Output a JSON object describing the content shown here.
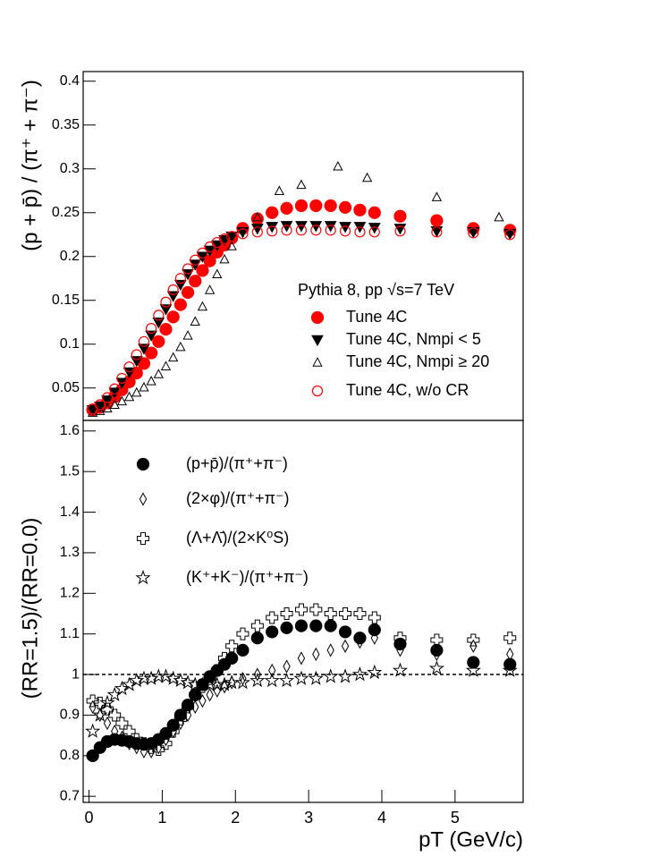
{
  "chart_data": [
    {
      "type": "scatter",
      "y_label": "(p + p̄) / (π⁺ + π⁻)",
      "legend_title": "Pythia 8, pp √s=7 TeV",
      "xlim": [
        -0.08,
        5.93
      ],
      "ylim": [
        0.013,
        0.411
      ],
      "yticks": [
        0.05,
        0.1,
        0.15,
        0.2,
        0.25,
        0.3,
        0.35,
        0.4
      ],
      "series": [
        {
          "name": "Tune 4C",
          "color": "#ff0000",
          "marker": "circle",
          "x": [
            0.05,
            0.15,
            0.25,
            0.35,
            0.45,
            0.55,
            0.65,
            0.75,
            0.85,
            0.95,
            1.05,
            1.15,
            1.25,
            1.35,
            1.45,
            1.55,
            1.65,
            1.75,
            1.85,
            1.95,
            2.1,
            2.3,
            2.5,
            2.7,
            2.9,
            3.1,
            3.3,
            3.5,
            3.7,
            3.9,
            4.25,
            4.75,
            5.25,
            5.75
          ],
          "values": [
            0.025,
            0.028,
            0.033,
            0.04,
            0.048,
            0.057,
            0.067,
            0.078,
            0.09,
            0.103,
            0.117,
            0.131,
            0.145,
            0.159,
            0.172,
            0.184,
            0.195,
            0.205,
            0.213,
            0.221,
            0.232,
            0.243,
            0.25,
            0.255,
            0.258,
            0.258,
            0.258,
            0.256,
            0.253,
            0.25,
            0.246,
            0.241,
            0.232,
            0.23
          ]
        },
        {
          "name": "Tune 4C, Nmpi < 5",
          "color": "#000000",
          "marker": "triangle-down",
          "x": [
            0.05,
            0.15,
            0.25,
            0.35,
            0.45,
            0.55,
            0.65,
            0.75,
            0.85,
            0.95,
            1.05,
            1.15,
            1.25,
            1.35,
            1.45,
            1.55,
            1.65,
            1.75,
            1.85,
            1.95,
            2.1,
            2.3,
            2.5,
            2.7,
            2.9,
            3.1,
            3.3,
            3.5,
            3.7,
            3.9,
            4.25,
            4.75,
            5.25,
            5.75
          ],
          "values": [
            0.025,
            0.029,
            0.036,
            0.045,
            0.056,
            0.068,
            0.081,
            0.095,
            0.11,
            0.125,
            0.14,
            0.155,
            0.168,
            0.18,
            0.191,
            0.2,
            0.207,
            0.213,
            0.219,
            0.223,
            0.228,
            0.232,
            0.234,
            0.235,
            0.235,
            0.235,
            0.235,
            0.234,
            0.234,
            0.233,
            0.232,
            0.229,
            0.228,
            0.226
          ]
        },
        {
          "name": "Tune 4C, Nmpi ≥ 20",
          "color": "#000000",
          "marker": "triangle-up",
          "x": [
            0.05,
            0.15,
            0.25,
            0.35,
            0.45,
            0.55,
            0.65,
            0.75,
            0.85,
            0.95,
            1.05,
            1.15,
            1.25,
            1.35,
            1.45,
            1.55,
            1.65,
            1.75,
            1.85,
            1.95,
            2.3,
            2.6,
            2.9,
            3.4,
            3.8,
            4.75,
            5.6
          ],
          "values": [
            0.022,
            0.024,
            0.027,
            0.031,
            0.035,
            0.04,
            0.045,
            0.051,
            0.058,
            0.066,
            0.075,
            0.085,
            0.097,
            0.11,
            0.126,
            0.143,
            0.162,
            0.18,
            0.197,
            0.212,
            0.245,
            0.275,
            0.282,
            0.303,
            0.29,
            0.268,
            0.245
          ]
        },
        {
          "name": "Tune 4C, w/o CR",
          "color": "#ff0000",
          "marker": "circle-open",
          "x": [
            0.05,
            0.15,
            0.25,
            0.35,
            0.45,
            0.55,
            0.65,
            0.75,
            0.85,
            0.95,
            1.05,
            1.15,
            1.25,
            1.35,
            1.45,
            1.55,
            1.65,
            1.75,
            1.85,
            1.95,
            2.1,
            2.3,
            2.5,
            2.7,
            2.9,
            3.1,
            3.3,
            3.5,
            3.7,
            3.9,
            4.25,
            4.75,
            5.25,
            5.75
          ],
          "values": [
            0.026,
            0.031,
            0.039,
            0.049,
            0.061,
            0.074,
            0.088,
            0.103,
            0.118,
            0.133,
            0.148,
            0.162,
            0.175,
            0.186,
            0.196,
            0.204,
            0.211,
            0.216,
            0.22,
            0.223,
            0.226,
            0.228,
            0.229,
            0.23,
            0.23,
            0.23,
            0.23,
            0.229,
            0.228,
            0.228,
            0.229,
            0.228,
            0.227,
            0.225
          ]
        }
      ]
    },
    {
      "type": "scatter",
      "y_label": "(RR=1.5)/(RR=0.0)",
      "x_label": "pT (GeV/c)",
      "xlim": [
        -0.08,
        5.93
      ],
      "ylim": [
        0.685,
        1.626
      ],
      "xticks": [
        0,
        1,
        2,
        3,
        4,
        5
      ],
      "yticks": [
        0.7,
        0.8,
        0.9,
        1,
        1.1,
        1.2,
        1.3,
        1.4,
        1.5,
        1.6
      ],
      "reference_line": 1,
      "series": [
        {
          "name": "(p+p̄)/(π⁺+π⁻)",
          "color": "#000000",
          "marker": "circle",
          "x": [
            0.05,
            0.15,
            0.25,
            0.35,
            0.45,
            0.55,
            0.65,
            0.75,
            0.85,
            0.95,
            1.05,
            1.15,
            1.25,
            1.35,
            1.45,
            1.55,
            1.65,
            1.75,
            1.85,
            1.95,
            2.1,
            2.3,
            2.5,
            2.7,
            2.9,
            3.1,
            3.3,
            3.5,
            3.7,
            3.9,
            4.25,
            4.75,
            5.25,
            5.75
          ],
          "values": [
            0.8,
            0.82,
            0.835,
            0.84,
            0.838,
            0.835,
            0.83,
            0.828,
            0.83,
            0.84,
            0.855,
            0.875,
            0.9,
            0.925,
            0.95,
            0.975,
            0.995,
            1.01,
            1.025,
            1.04,
            1.06,
            1.09,
            1.105,
            1.115,
            1.12,
            1.12,
            1.12,
            1.105,
            1.09,
            1.11,
            1.075,
            1.06,
            1.03,
            1.025
          ]
        },
        {
          "name": "(2×φ)/(π⁺+π⁻)",
          "color": "#000000",
          "marker": "diamond",
          "x": [
            0.05,
            0.15,
            0.25,
            0.35,
            0.45,
            0.55,
            0.65,
            0.75,
            0.85,
            0.95,
            1.05,
            1.15,
            1.25,
            1.35,
            1.45,
            1.55,
            1.65,
            1.75,
            1.85,
            1.95,
            2.1,
            2.3,
            2.5,
            2.7,
            2.9,
            3.1,
            3.3,
            3.5,
            3.7,
            3.9,
            4.25,
            4.75,
            5.25,
            5.75
          ],
          "values": [
            0.92,
            0.9,
            0.88,
            0.86,
            0.845,
            0.83,
            0.82,
            0.81,
            0.81,
            0.82,
            0.84,
            0.86,
            0.88,
            0.9,
            0.92,
            0.935,
            0.95,
            0.96,
            0.97,
            0.98,
            0.99,
            1,
            1.01,
            1.02,
            1.04,
            1.05,
            1.06,
            1.07,
            1.08,
            1.09,
            1.06,
            1.05,
            1.07,
            1.05
          ]
        },
        {
          "name": "(Λ+Λ̄)/(2×K⁰S)",
          "color": "#000000",
          "marker": "cross",
          "x": [
            0.05,
            0.15,
            0.25,
            0.35,
            0.45,
            0.55,
            0.65,
            0.75,
            0.85,
            0.95,
            1.05,
            1.15,
            1.25,
            1.35,
            1.45,
            1.55,
            1.65,
            1.75,
            1.85,
            1.95,
            2.1,
            2.3,
            2.5,
            2.7,
            2.9,
            3.1,
            3.3,
            3.5,
            3.7,
            3.9,
            4.25,
            4.75,
            5.25,
            5.75
          ],
          "values": [
            0.935,
            0.93,
            0.915,
            0.9,
            0.88,
            0.86,
            0.84,
            0.83,
            0.82,
            0.815,
            0.83,
            0.86,
            0.89,
            0.92,
            0.95,
            0.97,
            0.99,
            1.01,
            1.04,
            1.07,
            1.1,
            1.12,
            1.14,
            1.15,
            1.16,
            1.16,
            1.15,
            1.15,
            1.15,
            1.14,
            1.09,
            1.085,
            1.085,
            1.09
          ]
        },
        {
          "name": "(K⁺+K⁻)/(π⁺+π⁻)",
          "color": "#000000",
          "marker": "star",
          "x": [
            0.05,
            0.15,
            0.25,
            0.35,
            0.45,
            0.55,
            0.65,
            0.75,
            0.85,
            0.95,
            1.05,
            1.15,
            1.25,
            1.35,
            1.45,
            1.55,
            1.65,
            1.75,
            1.85,
            1.95,
            2.1,
            2.3,
            2.5,
            2.7,
            2.9,
            3.1,
            3.3,
            3.5,
            3.7,
            3.9,
            4.25,
            4.75,
            5.25,
            5.75
          ],
          "values": [
            0.86,
            0.9,
            0.93,
            0.95,
            0.965,
            0.975,
            0.985,
            0.99,
            0.99,
            0.995,
            0.995,
            0.99,
            0.985,
            0.98,
            0.975,
            0.975,
            0.975,
            0.975,
            0.975,
            0.98,
            0.98,
            0.985,
            0.985,
            0.985,
            0.99,
            0.99,
            0.995,
            0.995,
            1,
            1.005,
            1.01,
            1.015,
            1.01,
            1.01
          ]
        }
      ]
    }
  ]
}
